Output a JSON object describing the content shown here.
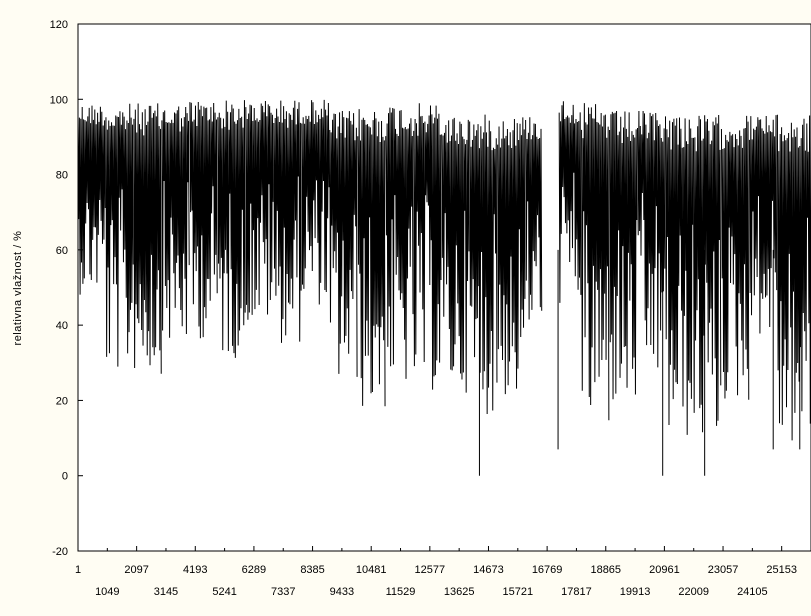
{
  "chart_data": {
    "type": "line",
    "title": "",
    "xlabel": "",
    "ylabel": "relativna vlažnost / %",
    "ylim": [
      -20,
      120
    ],
    "xlim": [
      1,
      26201
    ],
    "y_ticks": [
      "-20",
      "0",
      "20",
      "40",
      "60",
      "80",
      "100",
      "120"
    ],
    "x_ticks_upper": [
      "1",
      "2097",
      "4193",
      "6289",
      "8385",
      "10481",
      "12577",
      "14673",
      "16769",
      "18865",
      "20961",
      "23057",
      "25153"
    ],
    "x_ticks_lower": [
      "1049",
      "3145",
      "5241",
      "7337",
      "9433",
      "11529",
      "13625",
      "15721",
      "17817",
      "19913",
      "22009",
      "24105"
    ],
    "grid": false,
    "legend": "none",
    "series": [
      {
        "color": "#000000",
        "description": "dense hourly humidity signal, envelope per index segment",
        "segments": [
          {
            "x": [
              1,
              1000
            ],
            "max": 99,
            "min": 48
          },
          {
            "x": [
              1000,
              2000
            ],
            "max": 99,
            "min": 27
          },
          {
            "x": [
              2000,
              3000
            ],
            "max": 99,
            "min": 27
          },
          {
            "x": [
              3000,
              4000
            ],
            "max": 99,
            "min": 34
          },
          {
            "x": [
              4000,
              5000
            ],
            "max": 100,
            "min": 36
          },
          {
            "x": [
              5000,
              6000
            ],
            "max": 100,
            "min": 31
          },
          {
            "x": [
              6000,
              7000
            ],
            "max": 100,
            "min": 40
          },
          {
            "x": [
              7000,
              8000
            ],
            "max": 100,
            "min": 35
          },
          {
            "x": [
              8000,
              9000
            ],
            "max": 100,
            "min": 45
          },
          {
            "x": [
              9000,
              10000
            ],
            "max": 97,
            "min": 24
          },
          {
            "x": [
              10000,
              11000
            ],
            "max": 98,
            "min": 17
          },
          {
            "x": [
              11000,
              12000
            ],
            "max": 99,
            "min": 23
          },
          {
            "x": [
              12000,
              13000
            ],
            "max": 99,
            "min": 22
          },
          {
            "x": [
              13000,
              14000
            ],
            "max": 96,
            "min": 22
          },
          {
            "x": [
              14000,
              15000
            ],
            "max": 96,
            "min": 16
          },
          {
            "x": [
              15000,
              16000
            ],
            "max": 96,
            "min": 20
          },
          {
            "x": [
              16000,
              16600
            ],
            "max": 96,
            "min": 37
          },
          {
            "x": [
              17200,
              18000
            ],
            "max": 100,
            "min": 45
          },
          {
            "x": [
              18000,
              19000
            ],
            "max": 99,
            "min": 12
          },
          {
            "x": [
              19000,
              20000
            ],
            "max": 97,
            "min": 17
          },
          {
            "x": [
              20000,
              21000
            ],
            "max": 97,
            "min": 25
          },
          {
            "x": [
              21000,
              22000
            ],
            "max": 97,
            "min": 9
          },
          {
            "x": [
              22000,
              23000
            ],
            "max": 96,
            "min": 8
          },
          {
            "x": [
              23000,
              24000
            ],
            "max": 96,
            "min": 19
          },
          {
            "x": [
              24000,
              25000
            ],
            "max": 96,
            "min": 37
          },
          {
            "x": [
              25000,
              26201
            ],
            "max": 96,
            "min": 7
          }
        ],
        "spikes": [
          {
            "x": 14350,
            "y": 0
          },
          {
            "x": 17160,
            "y": 7
          },
          {
            "x": 20900,
            "y": 0
          },
          {
            "x": 22400,
            "y": 0
          },
          {
            "x": 24850,
            "y": 7
          },
          {
            "x": 25800,
            "y": 7
          }
        ]
      }
    ]
  }
}
